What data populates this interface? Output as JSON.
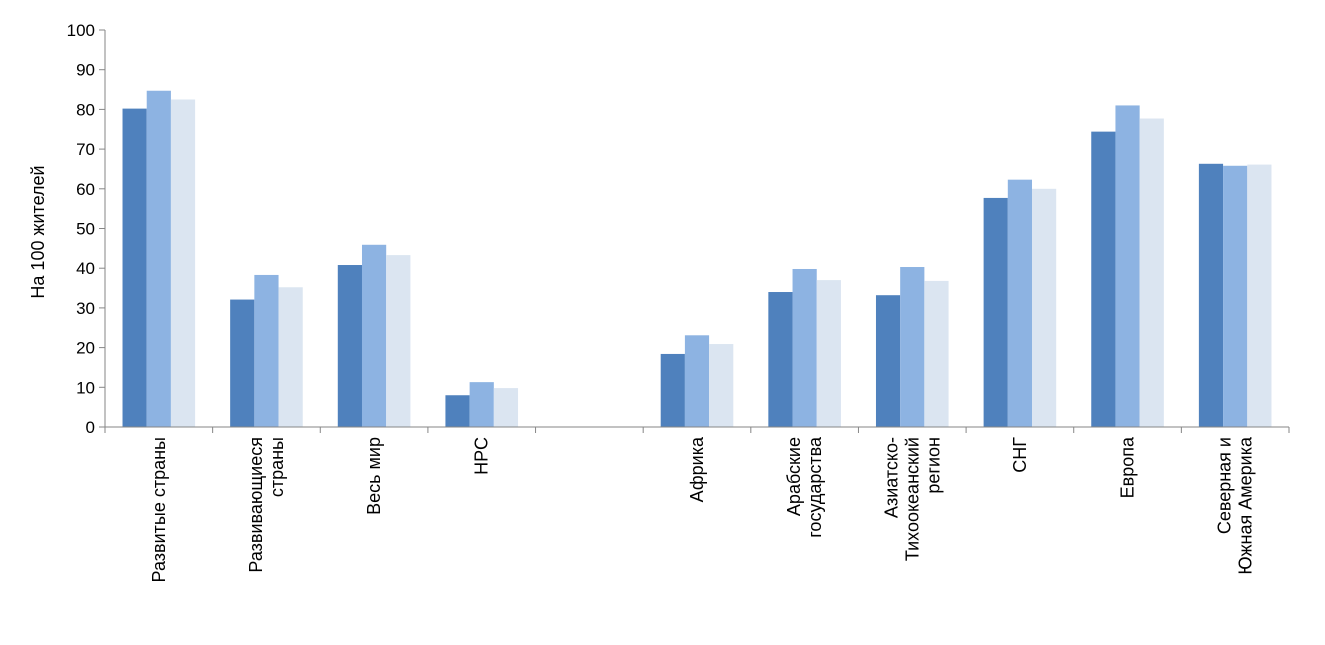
{
  "chart_data": {
    "type": "bar",
    "title": "",
    "xlabel": "",
    "ylabel": "На 100 жителей",
    "ylim": [
      0,
      100
    ],
    "yticks": [
      0,
      10,
      20,
      30,
      40,
      50,
      60,
      70,
      80,
      90,
      100
    ],
    "grid": false,
    "legend": "none",
    "categories": [
      [
        "Развитые страны"
      ],
      [
        "Развивающиеся",
        "страны"
      ],
      [
        "Весь мир"
      ],
      [
        "НРС"
      ],
      [
        ""
      ],
      [
        "Африка"
      ],
      [
        "Арабские",
        "государства"
      ],
      [
        "Азиатско-",
        "Тихоокеанский",
        "регион"
      ],
      [
        "СНГ"
      ],
      [
        "Европа"
      ],
      [
        "Северная и",
        "Южная Америка"
      ]
    ],
    "series": [
      {
        "name": "Series 1",
        "color": "#4f81bd",
        "values": [
          80.2,
          32.1,
          40.8,
          8.0,
          null,
          18.4,
          34.0,
          33.2,
          57.7,
          74.4,
          66.3
        ]
      },
      {
        "name": "Series 2",
        "color": "#8db3e2",
        "values": [
          84.7,
          38.3,
          45.9,
          11.3,
          null,
          23.1,
          39.8,
          40.3,
          62.3,
          81.0,
          65.8
        ]
      },
      {
        "name": "Series 3",
        "color": "#dbe5f1",
        "values": [
          82.5,
          35.2,
          43.3,
          9.8,
          null,
          20.9,
          37.0,
          36.8,
          60.0,
          77.7,
          66.1
        ]
      }
    ]
  }
}
